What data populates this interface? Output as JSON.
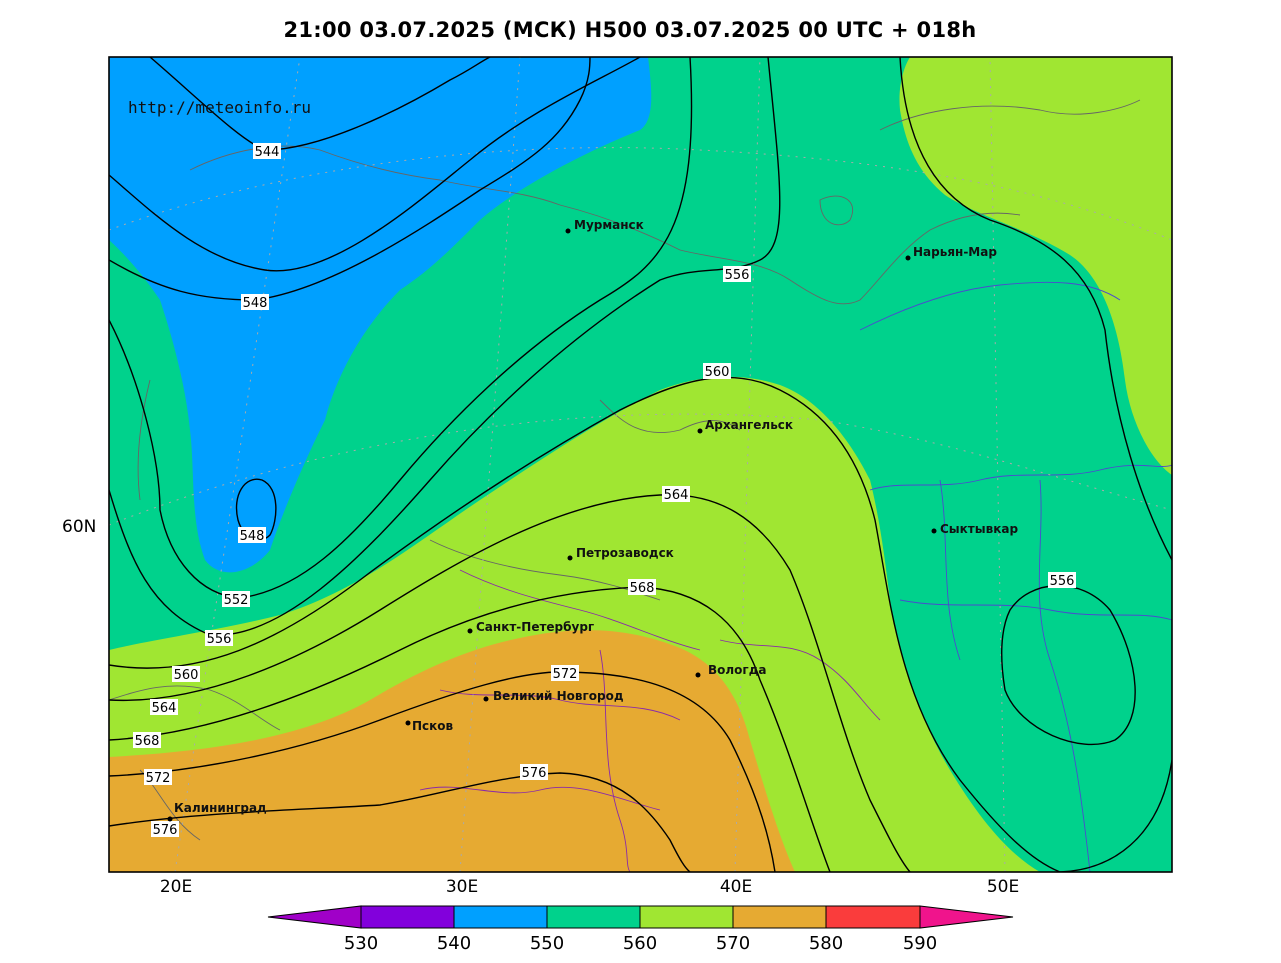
{
  "header": {
    "title": "21:00 03.07.2025 (МСК) H500  03.07.2025 00 UTC + 018h"
  },
  "map": {
    "watermark": "http://meteoinfo.ru",
    "lat_label": "60N",
    "lon_labels": [
      "20E",
      "30E",
      "40E",
      "50E"
    ],
    "cities": [
      {
        "name": "Мурманск"
      },
      {
        "name": "Нарьян-Мар"
      },
      {
        "name": "Архангельск"
      },
      {
        "name": "Сыктывкар"
      },
      {
        "name": "Петрозаводск"
      },
      {
        "name": "Санкт-Петербург"
      },
      {
        "name": "Вологда"
      },
      {
        "name": "Великий Новгород"
      },
      {
        "name": "Псков"
      },
      {
        "name": "Калининград"
      }
    ],
    "contour_labels": [
      "544",
      "548",
      "548",
      "552",
      "556",
      "556",
      "556",
      "560",
      "560",
      "564",
      "564",
      "568",
      "568",
      "572",
      "572",
      "576",
      "576"
    ],
    "fill_colors": {
      "540-550": "#00a0ff",
      "550-560": "#00d28c",
      "560-570": "#a0e632",
      "570-580": "#e6aa32"
    }
  },
  "colorbar": {
    "ticks": [
      "530",
      "540",
      "550",
      "560",
      "570",
      "580",
      "590"
    ],
    "colors": [
      "#a000c8",
      "#8200dc",
      "#00a0ff",
      "#00d28c",
      "#a0e632",
      "#e6aa32",
      "#fa3c3c",
      "#f0148c"
    ]
  }
}
